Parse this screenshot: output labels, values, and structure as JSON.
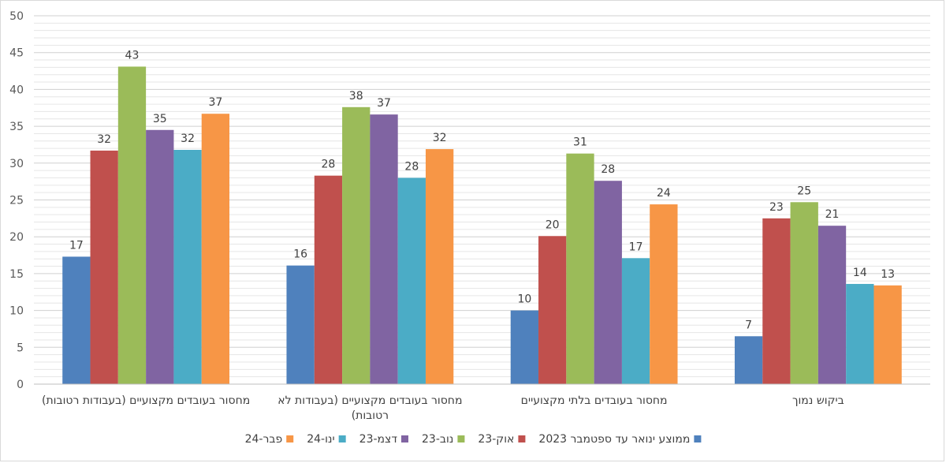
{
  "chart_data": {
    "type": "bar",
    "categories": [
      "מחסור בעובדים מקצועיים (בעבודות רטובות)",
      "מחסור בעובדים מקצועיים (בעבודות לא רטובות)",
      "מחסור בעובדים בלתי מקצועיים",
      "ביקוש נמוך"
    ],
    "category_lines": [
      [
        "מחסור בעובדים מקצועיים (בעבודות רטובות)"
      ],
      [
        "מחסור בעובדים מקצועיים (בעבודות לא",
        "רטובות)"
      ],
      [
        "מחסור בעובדים בלתי מקצועיים"
      ],
      [
        "ביקוש נמוך"
      ]
    ],
    "series": [
      {
        "name": "ממוצע ינואר עד ספטמבר 2023",
        "color": "#4f81bd",
        "values": [
          17.3,
          16.1,
          10.0,
          6.5
        ],
        "labels": [
          "17",
          "16",
          "10",
          "7"
        ]
      },
      {
        "name": "אוק-23",
        "color": "#c0504d",
        "values": [
          31.7,
          28.3,
          20.1,
          22.5
        ],
        "labels": [
          "32",
          "28",
          "20",
          "23"
        ]
      },
      {
        "name": "נוב-23",
        "color": "#9bbb59",
        "values": [
          43.1,
          37.6,
          31.3,
          24.7
        ],
        "labels": [
          "43",
          "38",
          "31",
          "25"
        ]
      },
      {
        "name": "דצמ-23",
        "color": "#8064a2",
        "values": [
          34.5,
          36.6,
          27.6,
          21.5
        ],
        "labels": [
          "35",
          "37",
          "28",
          "21"
        ]
      },
      {
        "name": "ינו-24",
        "color": "#4bacc6",
        "values": [
          31.8,
          28.0,
          17.1,
          13.6
        ],
        "labels": [
          "32",
          "28",
          "17",
          "14"
        ]
      },
      {
        "name": "פבר-24",
        "color": "#f79646",
        "values": [
          36.7,
          31.9,
          24.4,
          13.4
        ],
        "labels": [
          "37",
          "32",
          "24",
          "13"
        ]
      }
    ],
    "y_ticks": [
      "0",
      "5",
      "10",
      "15",
      "20",
      "25",
      "30",
      "35",
      "40",
      "45",
      "50"
    ],
    "ylim": [
      0,
      50
    ],
    "minor_grid_step": 1,
    "grid": true,
    "legend_position": "bottom"
  }
}
